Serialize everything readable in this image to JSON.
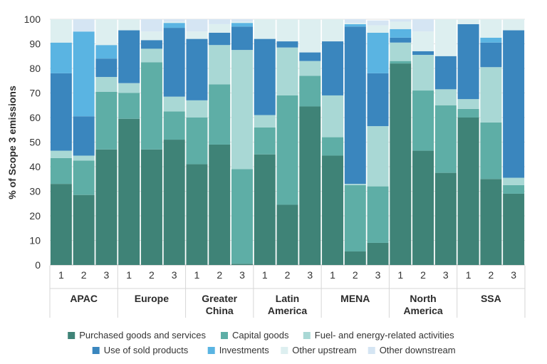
{
  "chart_data": {
    "type": "stacked-bar",
    "title": "",
    "xlabel": "",
    "ylabel": "% of Scope 3 emissions",
    "ylim": [
      0,
      100
    ],
    "yticks": [
      0,
      10,
      20,
      30,
      40,
      50,
      60,
      70,
      80,
      90,
      100
    ],
    "regions": [
      {
        "name": "APAC",
        "bars": [
          "1",
          "2",
          "3"
        ]
      },
      {
        "name": "Europe",
        "bars": [
          "1",
          "2",
          "3"
        ]
      },
      {
        "name": "Greater China",
        "bars": [
          "1",
          "2",
          "3"
        ]
      },
      {
        "name": "Latin America",
        "bars": [
          "1",
          "2",
          "3"
        ]
      },
      {
        "name": "MENA",
        "bars": [
          "1",
          "2",
          "3"
        ]
      },
      {
        "name": "North America",
        "bars": [
          "1",
          "2",
          "3"
        ]
      },
      {
        "name": "SSA",
        "bars": [
          "1",
          "2",
          "3"
        ]
      }
    ],
    "series": [
      {
        "name": "Purchased goods and services",
        "color": "#3f8377",
        "values": [
          33,
          28.5,
          47,
          59.5,
          47,
          51,
          41,
          49,
          0.5,
          45,
          24.5,
          64.5,
          44.5,
          5.5,
          9,
          82,
          46.5,
          37.5,
          60,
          35,
          29
        ]
      },
      {
        "name": "Capital goods",
        "color": "#5eaea6",
        "values": [
          10.5,
          14,
          23.5,
          10.5,
          35.5,
          11.5,
          19,
          24.5,
          38.5,
          11,
          44.5,
          12.5,
          7.5,
          27,
          23,
          1,
          24.5,
          27.5,
          3.5,
          23,
          3.5
        ]
      },
      {
        "name": "Fuel- and energy-related activities",
        "color": "#a9d8d5",
        "values": [
          3,
          2,
          6,
          4,
          5.5,
          6,
          7,
          16,
          48.5,
          5,
          19.5,
          6,
          17,
          0.5,
          24.5,
          7.5,
          14.5,
          6.5,
          4,
          22.5,
          3
        ]
      },
      {
        "name": "Use of sold products",
        "color": "#3a86be",
        "values": [
          31.5,
          16,
          7.5,
          21.5,
          3.5,
          28,
          25,
          5,
          9.5,
          31,
          2.5,
          3.5,
          22,
          64,
          21.5,
          2,
          1.5,
          13.5,
          30.5,
          10,
          60
        ]
      },
      {
        "name": "Investments",
        "color": "#5ab4e2",
        "values": [
          12.5,
          34.5,
          5.5,
          0,
          0,
          2,
          0,
          0,
          1.5,
          0,
          0,
          0,
          0,
          1,
          16.5,
          3.5,
          0,
          0,
          0,
          2,
          0
        ]
      },
      {
        "name": "Other upstream",
        "color": "#ddeff0",
        "values": [
          9.5,
          0,
          10.5,
          4.5,
          3.5,
          0.5,
          3,
          3.5,
          0.5,
          8,
          9,
          13.5,
          9,
          0.5,
          3,
          3,
          8,
          15,
          2,
          7.5,
          4.5
        ]
      },
      {
        "name": "Other downstream",
        "color": "#d5e5f3",
        "values": [
          0,
          5,
          0,
          0,
          5,
          1,
          5,
          2,
          1,
          0,
          0,
          0,
          0,
          1.5,
          2,
          1,
          5,
          0,
          0,
          0,
          0
        ]
      }
    ],
    "legend_rows": [
      [
        "Purchased goods and services",
        "Capital goods",
        "Fuel- and energy-related activities"
      ],
      [
        "Use of sold products",
        "Investments",
        "Other upstream",
        "Other downstream"
      ]
    ]
  },
  "region_labels": [
    [
      "APAC"
    ],
    [
      "Europe"
    ],
    [
      "Greater",
      "China"
    ],
    [
      "Latin",
      "America"
    ],
    [
      "MENA"
    ],
    [
      "North",
      "America"
    ],
    [
      "SSA"
    ]
  ]
}
